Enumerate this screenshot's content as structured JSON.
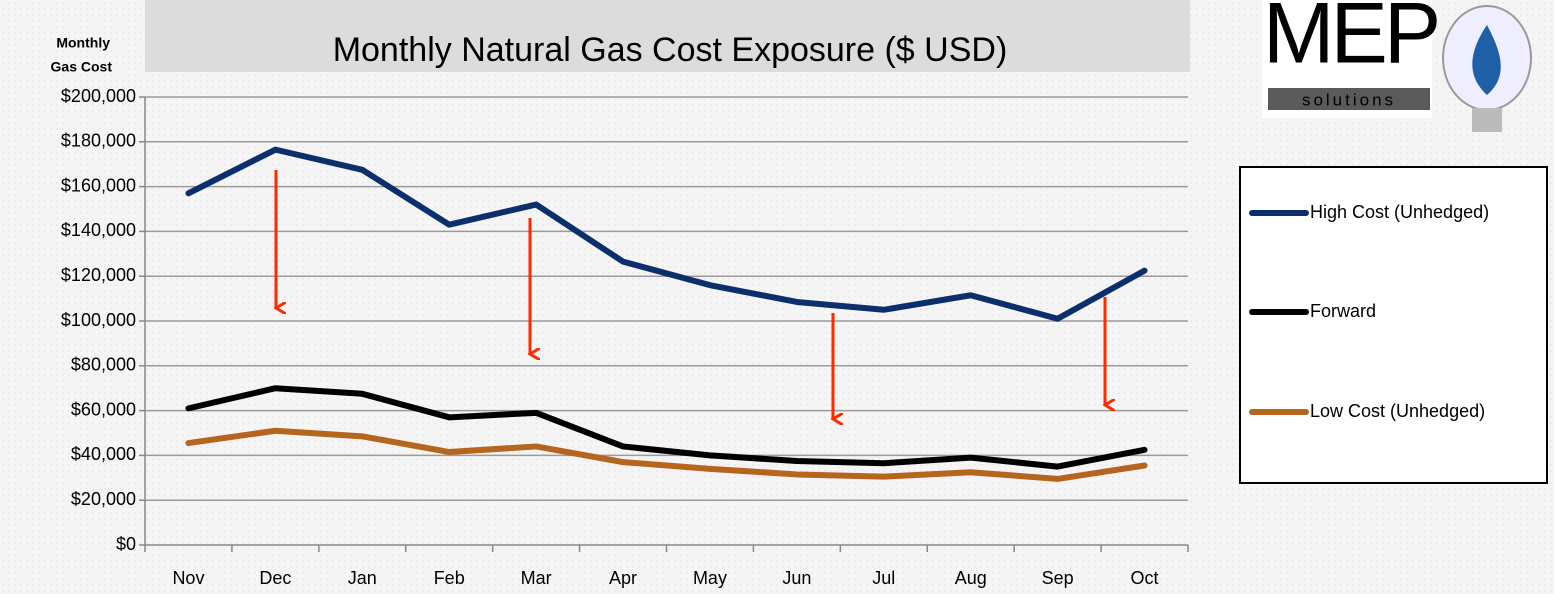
{
  "chart_data": {
    "type": "line",
    "title": "Monthly Natural Gas Cost Exposure ($ USD)",
    "ylabel": [
      "Monthly",
      "Gas Cost"
    ],
    "logo": {
      "text": "MEP",
      "subtext": "solutions"
    },
    "categories": [
      "Nov",
      "Dec",
      "Jan",
      "Feb",
      "Mar",
      "Apr",
      "May",
      "Jun",
      "Jul",
      "Aug",
      "Sep",
      "Oct"
    ],
    "series": [
      {
        "name": "High Cost (Unhedged)",
        "color": "#0b2f6b",
        "values": [
          157000,
          176500,
          167500,
          143000,
          152000,
          126500,
          116000,
          108500,
          105000,
          111500,
          101000,
          122500
        ]
      },
      {
        "name": "Forward",
        "color": "#000000",
        "values": [
          61000,
          70000,
          67500,
          57000,
          59000,
          44000,
          40000,
          37500,
          36500,
          39000,
          35000,
          42500
        ]
      },
      {
        "name": "Low Cost (Unhedged)",
        "color": "#b5651d",
        "values": [
          45500,
          51000,
          48500,
          41500,
          44000,
          37000,
          34000,
          31500,
          30500,
          32500,
          29500,
          35500
        ]
      }
    ],
    "ylim": [
      0,
      200000
    ],
    "yticks": [
      {
        "value": 0,
        "label": "$0"
      },
      {
        "value": 20000,
        "label": "$20,000"
      },
      {
        "value": 40000,
        "label": "$40,000"
      },
      {
        "value": 60000,
        "label": "$60,000"
      },
      {
        "value": 80000,
        "label": "$80,000"
      },
      {
        "value": 100000,
        "label": "$100,000"
      },
      {
        "value": 120000,
        "label": "$120,000"
      },
      {
        "value": 140000,
        "label": "$140,000"
      },
      {
        "value": 160000,
        "label": "$160,000"
      },
      {
        "value": 180000,
        "label": "$180,000"
      },
      {
        "value": 200000,
        "label": "$200,000"
      }
    ],
    "grid": true,
    "legend": "right"
  }
}
